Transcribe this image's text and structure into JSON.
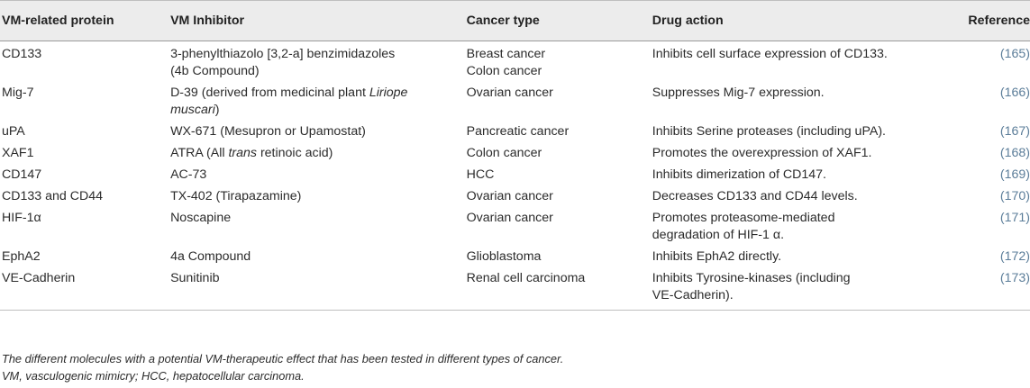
{
  "table": {
    "headers": [
      "VM-related protein",
      "VM Inhibitor",
      "Cancer type",
      "Drug action",
      "Reference"
    ],
    "rows": [
      {
        "protein": "CD133",
        "inhibitor_line1": "3-phenylthiazolo [3,2-a] benzimidazoles",
        "inhibitor_line2": "(4b Compound)",
        "cancer_line1": "Breast cancer",
        "cancer_line2": "Colon cancer",
        "action_line1": "Inhibits cell surface expression of CD133.",
        "action_line2": "",
        "reference": "(165)"
      },
      {
        "protein": "Mig-7",
        "inhibitor_pre": "D-39 (derived from medicinal plant ",
        "inhibitor_italic1": "Liriope",
        "inhibitor_italic2": "muscari",
        "inhibitor_post": ")",
        "cancer_line1": "Ovarian cancer",
        "cancer_line2": "",
        "action_line1": "Suppresses Mig-7 expression.",
        "action_line2": "",
        "reference": "(166)"
      },
      {
        "protein": "uPA",
        "inhibitor_line1": "WX-671 (Mesupron or Upamostat)",
        "cancer_line1": "Pancreatic cancer",
        "action_line1": "Inhibits Serine proteases (including uPA).",
        "reference": "(167)"
      },
      {
        "protein": "XAF1",
        "inhibitor_pre": "ATRA (All ",
        "inhibitor_italic": "trans",
        "inhibitor_post": " retinoic acid)",
        "cancer_line1": "Colon cancer",
        "action_line1": "Promotes the overexpression of XAF1.",
        "reference": "(168)"
      },
      {
        "protein": "CD147",
        "inhibitor_line1": "AC-73",
        "cancer_line1": "HCC",
        "action_line1": "Inhibits dimerization of CD147.",
        "reference": "(169)"
      },
      {
        "protein": "CD133 and CD44",
        "inhibitor_line1": "TX-402 (Tirapazamine)",
        "cancer_line1": "Ovarian cancer",
        "action_line1": "Decreases CD133 and CD44 levels.",
        "reference": "(170)"
      },
      {
        "protein": "HIF-1α",
        "inhibitor_line1": "Noscapine",
        "cancer_line1": "Ovarian cancer",
        "action_line1": "Promotes proteasome-mediated",
        "action_line2": "degradation of HIF-1 α.",
        "reference": "(171)"
      },
      {
        "protein": "EphA2",
        "inhibitor_line1": "4a Compound",
        "cancer_line1": "Glioblastoma",
        "action_line1": "Inhibits EphA2 directly.",
        "reference": "(172)"
      },
      {
        "protein": "VE-Cadherin",
        "inhibitor_line1": "Sunitinib",
        "cancer_line1": "Renal cell carcinoma",
        "action_line1": "Inhibits Tyrosine-kinases (including",
        "action_line2": "VE-Cadherin).",
        "reference": "(173)"
      }
    ]
  },
  "footnotes": {
    "line1": "The different molecules with a potential VM-therapeutic effect that has been tested in different types of cancer.",
    "line2": "VM, vasculogenic mimicry; HCC, hepatocellular carcinoma."
  }
}
